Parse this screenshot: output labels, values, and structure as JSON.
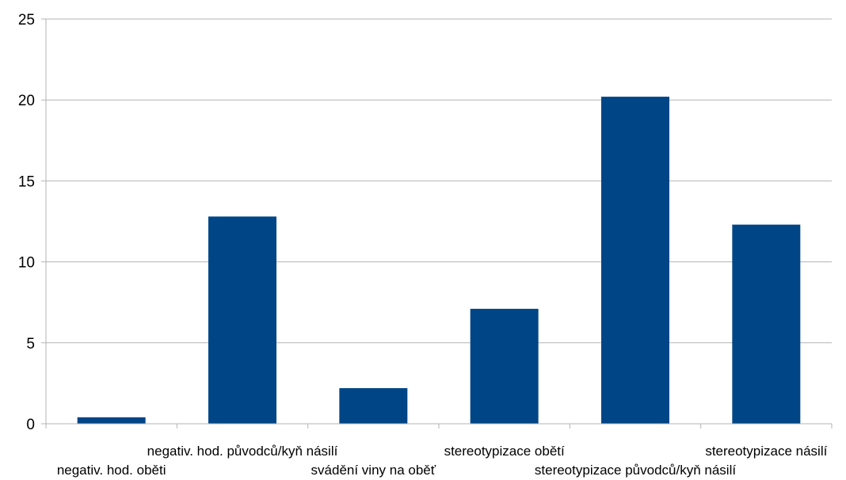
{
  "chart_data": {
    "type": "bar",
    "categories": [
      "negativ. hod. oběti",
      "negativ. hod. původců/kyň násilí",
      "svádění viny na oběť",
      "stereotypizace obětí",
      "stereotypizace původců/kyň násilí",
      "stereotypizace násilí"
    ],
    "values": [
      0.4,
      12.8,
      2.2,
      7.1,
      20.2,
      12.3
    ],
    "ylim": [
      0,
      25
    ],
    "yticks": [
      0,
      5,
      10,
      15,
      20,
      25
    ],
    "grid": true,
    "legend": "none",
    "title": "",
    "xlabel": "",
    "ylabel": "",
    "colors": {
      "bar": "#004586",
      "grid": "#b3b3b3",
      "axis": "#b3b3b3"
    }
  }
}
